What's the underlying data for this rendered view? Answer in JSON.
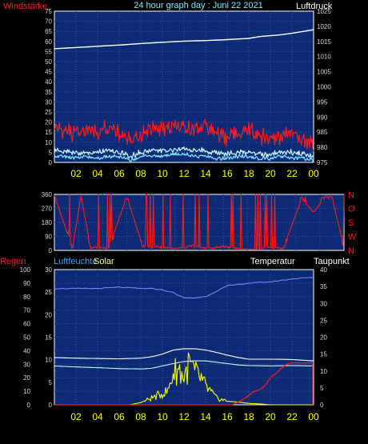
{
  "colors": {
    "plot_bg": "#0c2b74",
    "grid": "#3553a6",
    "axis_text": "#d8d8d8",
    "time_tick": "#ffff00",
    "red": "#ff1a1a",
    "white": "#ffffff",
    "lightcyan": "#c9f5ff",
    "cyan": "#7fe9ff",
    "blue_label": "#3aa7ff",
    "purple": "#7f7fff",
    "yellow": "#ffff00",
    "pale_yellow": "#ffff99"
  },
  "header": {
    "left_label": "Windstärke",
    "title": "24 hour graph day : Juni 22 2021",
    "right_label": "Luftdruck"
  },
  "wind_dir_labels": [
    "N",
    "W",
    "S",
    "O",
    "N"
  ],
  "bottom_header": {
    "regen": "Regen",
    "luftfeuchte": "Luftfeuchte",
    "solar": "Solar",
    "temperatur": "Temperatur",
    "taupunkt": "Taupunkt"
  },
  "chart_data": [
    {
      "type": "line",
      "title": "24 hour graph day : Juni 22 2021",
      "x_ticks": [
        "02",
        "04",
        "06",
        "08",
        "10",
        "12",
        "14",
        "16",
        "18",
        "20",
        "22",
        "00"
      ],
      "xlim": [
        0,
        24
      ],
      "left_axis": {
        "label": "Windstärke",
        "ticks": [
          "0",
          "5",
          "10",
          "15",
          "20",
          "25",
          "30",
          "35",
          "40",
          "45",
          "50",
          "55",
          "60",
          "65",
          "70",
          "75"
        ],
        "range": [
          0,
          75
        ]
      },
      "right_axis": {
        "label": "Luftdruck",
        "ticks": [
          "975",
          "980",
          "985",
          "990",
          "995",
          "1000",
          "1005",
          "1010",
          "1015",
          "1020",
          "1025"
        ],
        "range": [
          975,
          1025
        ]
      },
      "series": [
        {
          "axis": "right",
          "color": "#ffffff",
          "x": [
            0,
            2,
            4,
            6,
            8,
            10,
            12,
            14,
            16,
            18,
            19,
            20,
            21,
            22,
            23,
            24
          ],
          "values": [
            1012.6,
            1013,
            1013.4,
            1013.8,
            1014.3,
            1014.7,
            1015.1,
            1015.3,
            1015.6,
            1016.0,
            1016.6,
            1016.9,
            1017.2,
            1017.7,
            1018.3,
            1018.9
          ]
        },
        {
          "axis": "left",
          "color": "#ff1a1a",
          "style": "gusts",
          "x": [
            0,
            1,
            2,
            3,
            4,
            5,
            6,
            7,
            8,
            9,
            10,
            11,
            12,
            13,
            14,
            15,
            16,
            17,
            18,
            19,
            20,
            21,
            22,
            23,
            24
          ],
          "values": [
            19,
            15,
            14,
            16,
            15,
            18,
            14,
            11,
            14,
            16,
            17,
            19,
            18,
            16,
            19,
            14,
            12,
            14,
            16,
            13,
            12,
            13,
            15,
            10,
            9
          ]
        },
        {
          "axis": "left",
          "color": "#c9f5ff",
          "style": "average",
          "x": [
            0,
            1,
            2,
            3,
            4,
            5,
            6,
            7,
            8,
            9,
            10,
            11,
            12,
            13,
            14,
            15,
            16,
            17,
            18,
            19,
            20,
            21,
            22,
            23,
            24
          ],
          "values": [
            6,
            5,
            5,
            5,
            5,
            6,
            5,
            3,
            5,
            6,
            6,
            6,
            7,
            6,
            6,
            5,
            4,
            5,
            5,
            4,
            4,
            5,
            5,
            4,
            3
          ]
        },
        {
          "axis": "left",
          "color": "#7fe9ff",
          "style": "minimum",
          "x": [
            0,
            1,
            2,
            3,
            4,
            5,
            6,
            7,
            8,
            9,
            10,
            11,
            12,
            13,
            14,
            15,
            16,
            17,
            18,
            19,
            20,
            21,
            22,
            23,
            24
          ],
          "values": [
            3,
            3,
            2,
            3,
            2,
            3,
            3,
            1,
            3,
            3,
            3,
            4,
            4,
            3,
            3,
            2,
            2,
            3,
            3,
            2,
            2,
            3,
            2,
            2,
            1
          ]
        }
      ]
    },
    {
      "type": "line",
      "title": "",
      "x_ticks": [
        "02",
        "04",
        "06",
        "08",
        "10",
        "12",
        "14",
        "16",
        "18",
        "20",
        "22",
        "00"
      ],
      "xlim": [
        0,
        24
      ],
      "left_axis": {
        "label": "",
        "ticks": [
          "0",
          "90",
          "180",
          "270",
          "360"
        ],
        "range": [
          0,
          360
        ]
      },
      "right_axis": {
        "label": "",
        "ticks": [
          "N",
          "W",
          "S",
          "O",
          "N"
        ],
        "range": [
          0,
          360
        ]
      },
      "series": [
        {
          "axis": "left",
          "color": "#ff1a1a",
          "style": "wind_direction",
          "x": [
            0,
            1.5,
            2.2,
            3.0,
            4.5,
            6.0,
            7.3,
            8.0,
            9.0,
            10.0,
            11.5,
            12.0,
            13.0,
            14.0,
            15.5,
            16.5,
            17.5,
            19.0,
            20.0,
            20.5,
            21.5,
            22.5,
            23.0,
            24.0
          ],
          "values": [
            355,
            10,
            350,
            20,
            15,
            345,
            30,
            25,
            20,
            10,
            30,
            20,
            15,
            25,
            10,
            5,
            20,
            15,
            230,
            330,
            245,
            350,
            345,
            15
          ]
        }
      ]
    },
    {
      "type": "line",
      "title": "",
      "x_ticks": [
        "02",
        "04",
        "06",
        "08",
        "10",
        "12",
        "14",
        "16",
        "18",
        "20",
        "22",
        "00"
      ],
      "xlim": [
        0,
        24
      ],
      "axes": {
        "regen": {
          "label": "Regen",
          "ticks": [
            "0",
            "10",
            "20",
            "30",
            "40",
            "50",
            "60",
            "70",
            "80",
            "90",
            "100"
          ],
          "range": [
            0,
            100
          ]
        },
        "luftfeuchte": {
          "label": "Luftfeuchte",
          "ticks": [
            "0",
            "5",
            "10",
            "15",
            "20",
            "25",
            "30"
          ],
          "range": [
            0,
            30
          ]
        },
        "temperatur": {
          "label": "Temperatur",
          "ticks": [
            "0",
            "5",
            "10",
            "15",
            "20",
            "25",
            "30",
            "35",
            "40"
          ],
          "range": [
            0,
            40
          ]
        }
      },
      "series": [
        {
          "axis": "regen",
          "color": "#7f7fff",
          "label": "Luftfeuchte",
          "x": [
            0,
            2,
            4,
            6,
            8,
            9,
            10,
            11,
            12,
            13,
            14,
            15,
            16,
            17,
            18,
            20,
            22,
            23,
            24
          ],
          "values": [
            86,
            86,
            86,
            87,
            86,
            86,
            85,
            83,
            79,
            79,
            80,
            84,
            88,
            89,
            90,
            91,
            93,
            94,
            94
          ]
        },
        {
          "axis": "temperatur",
          "color": "#ffffff",
          "label": "Temperatur",
          "x": [
            0,
            2,
            4,
            6,
            8,
            9,
            10,
            11,
            12,
            13,
            14,
            15,
            16,
            17,
            18,
            20,
            22,
            24
          ],
          "values": [
            14,
            13.8,
            13.7,
            13.6,
            13.8,
            14.2,
            15,
            16.2,
            16.6,
            16.6,
            16.2,
            15.5,
            14.7,
            14,
            13.5,
            13.5,
            13.4,
            13
          ]
        },
        {
          "axis": "temperatur",
          "color": "#c9f5ff",
          "label": "Taupunkt",
          "x": [
            0,
            2,
            4,
            6,
            8,
            9,
            10,
            11,
            12,
            13,
            14,
            15,
            16,
            17,
            18,
            20,
            22,
            24
          ],
          "values": [
            11.5,
            11.2,
            11,
            10.7,
            10.6,
            10.8,
            11.5,
            12.2,
            12.8,
            13,
            13,
            12.6,
            12.2,
            11.8,
            11.6,
            11.5,
            11.6,
            11.5
          ]
        },
        {
          "axis": "luftfeuchte",
          "color": "#ffff00",
          "label": "Solar",
          "x": [
            0,
            7,
            8,
            9,
            9.5,
            10,
            10.5,
            11,
            11.5,
            12,
            12.5,
            13,
            13.5,
            14,
            15,
            16,
            17,
            18,
            19,
            20,
            24
          ],
          "values": [
            0,
            0,
            0.5,
            1.5,
            2,
            2.5,
            3,
            7,
            8,
            6,
            9,
            7,
            6,
            4,
            1.5,
            0.8,
            0.6,
            0.3,
            0.2,
            0,
            0
          ]
        },
        {
          "axis": "regen",
          "color": "#ff1a1a",
          "label": "Regen",
          "x": [
            0,
            16.5,
            17,
            17.5,
            18,
            18.5,
            19,
            19.5,
            20,
            20.5,
            21,
            21.5,
            22,
            24
          ],
          "values": [
            0,
            0,
            2,
            4,
            7,
            10,
            11,
            14,
            20,
            23,
            27,
            30,
            31,
            31
          ]
        }
      ]
    }
  ]
}
